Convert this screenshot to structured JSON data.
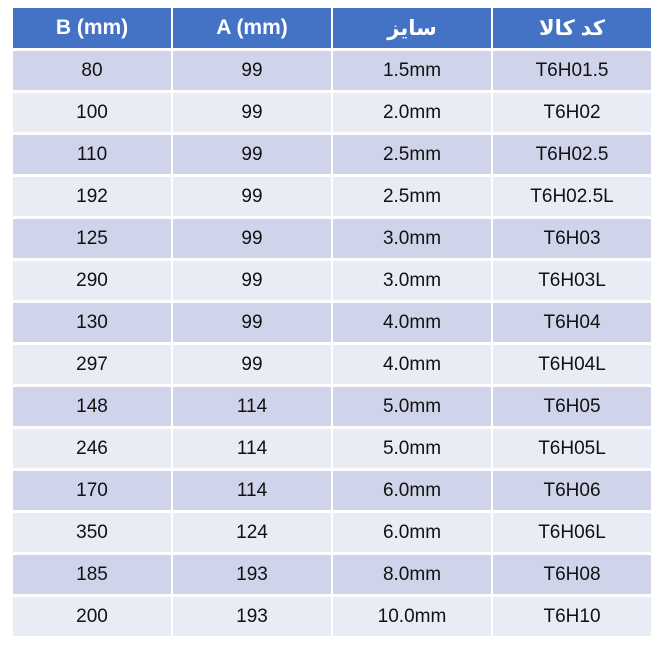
{
  "page": {
    "background_color": "#FFFFFF"
  },
  "table": {
    "columns": [
      {
        "key": "b",
        "label": "B (mm)",
        "lang": "en"
      },
      {
        "key": "a",
        "label": "A (mm)",
        "lang": "en"
      },
      {
        "key": "size",
        "label": "سایز",
        "lang": "fa"
      },
      {
        "key": "code",
        "label": "کد کالا",
        "lang": "fa"
      }
    ],
    "rows": [
      {
        "b": "80",
        "a": "99",
        "size": "1.5mm",
        "code": "T6H01.5"
      },
      {
        "b": "100",
        "a": "99",
        "size": "2.0mm",
        "code": "T6H02"
      },
      {
        "b": "110",
        "a": "99",
        "size": "2.5mm",
        "code": "T6H02.5"
      },
      {
        "b": "192",
        "a": "99",
        "size": "2.5mm",
        "code": "T6H02.5L"
      },
      {
        "b": "125",
        "a": "99",
        "size": "3.0mm",
        "code": "T6H03"
      },
      {
        "b": "290",
        "a": "99",
        "size": "3.0mm",
        "code": "T6H03L"
      },
      {
        "b": "130",
        "a": "99",
        "size": "4.0mm",
        "code": "T6H04"
      },
      {
        "b": "297",
        "a": "99",
        "size": "4.0mm",
        "code": "T6H04L"
      },
      {
        "b": "148",
        "a": "114",
        "size": "5.0mm",
        "code": "T6H05"
      },
      {
        "b": "246",
        "a": "114",
        "size": "5.0mm",
        "code": "T6H05L"
      },
      {
        "b": "170",
        "a": "114",
        "size": "6.0mm",
        "code": "T6H06"
      },
      {
        "b": "350",
        "a": "124",
        "size": "6.0mm",
        "code": "T6H06L"
      },
      {
        "b": "185",
        "a": "193",
        "size": "8.0mm",
        "code": "T6H08"
      },
      {
        "b": "200",
        "a": "193",
        "size": "10.0mm",
        "code": "T6H10"
      }
    ],
    "colors": {
      "header_bg": "#4472C4",
      "header_text": "#FFFFFF",
      "row_band_dark": "#CFD4EA",
      "row_band_light": "#E9EBF5",
      "grid_gap": "#FFFFFF",
      "body_text": "#111111"
    }
  },
  "chart_data": {
    "type": "table",
    "title": "",
    "columns": [
      "B (mm)",
      "A (mm)",
      "سایز",
      "کد کالا"
    ],
    "rows": [
      [
        "80",
        "99",
        "1.5mm",
        "T6H01.5"
      ],
      [
        "100",
        "99",
        "2.0mm",
        "T6H02"
      ],
      [
        "110",
        "99",
        "2.5mm",
        "T6H02.5"
      ],
      [
        "192",
        "99",
        "2.5mm",
        "T6H02.5L"
      ],
      [
        "125",
        "99",
        "3.0mm",
        "T6H03"
      ],
      [
        "290",
        "99",
        "3.0mm",
        "T6H03L"
      ],
      [
        "130",
        "99",
        "4.0mm",
        "T6H04"
      ],
      [
        "297",
        "99",
        "4.0mm",
        "T6H04L"
      ],
      [
        "148",
        "114",
        "5.0mm",
        "T6H05"
      ],
      [
        "246",
        "114",
        "5.0mm",
        "T6H05L"
      ],
      [
        "170",
        "114",
        "6.0mm",
        "T6H06"
      ],
      [
        "350",
        "124",
        "6.0mm",
        "T6H06L"
      ],
      [
        "185",
        "193",
        "8.0mm",
        "T6H08"
      ],
      [
        "200",
        "193",
        "10.0mm",
        "T6H10"
      ]
    ],
    "layout_hints": {
      "header_style": "solid blue band, white bold text",
      "row_banding": "alternating periwinkle (#CFD4EA) and pale lavender (#E9EBF5), starting dark",
      "grid": "white gaps between all cells",
      "text_align": "center"
    }
  }
}
